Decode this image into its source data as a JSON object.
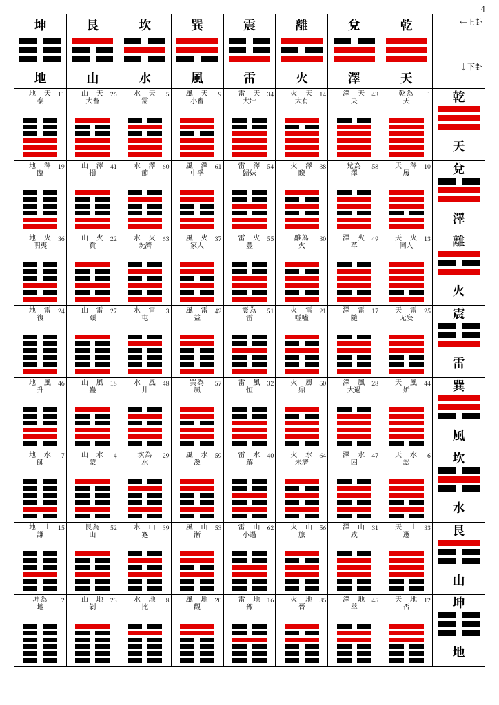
{
  "page_number": "4",
  "colors": {
    "solid": "#e20000",
    "broken": "#000000"
  },
  "legend": {
    "top": "←上卦",
    "bottom": "↓下卦"
  },
  "trigrams": [
    {
      "name": "坤",
      "elem": "地",
      "lines": [
        0,
        0,
        0
      ]
    },
    {
      "name": "艮",
      "elem": "山",
      "lines": [
        1,
        0,
        0
      ]
    },
    {
      "name": "坎",
      "elem": "水",
      "lines": [
        0,
        1,
        0
      ]
    },
    {
      "name": "巽",
      "elem": "風",
      "lines": [
        1,
        1,
        0
      ]
    },
    {
      "name": "震",
      "elem": "雷",
      "lines": [
        0,
        0,
        1
      ]
    },
    {
      "name": "離",
      "elem": "火",
      "lines": [
        1,
        0,
        1
      ]
    },
    {
      "name": "兌",
      "elem": "澤",
      "lines": [
        0,
        1,
        1
      ]
    },
    {
      "name": "乾",
      "elem": "天",
      "lines": [
        1,
        1,
        1
      ]
    }
  ],
  "grid": [
    [
      {
        "n": 11,
        "t1": "地　天",
        "t2": "泰"
      },
      {
        "n": 26,
        "t1": "山　天",
        "t2": "大畜"
      },
      {
        "n": 5,
        "t1": "水　天",
        "t2": "需"
      },
      {
        "n": 9,
        "t1": "風　天",
        "t2": "小畜"
      },
      {
        "n": 34,
        "t1": "雷　天",
        "t2": "大壯"
      },
      {
        "n": 14,
        "t1": "火　天",
        "t2": "大有"
      },
      {
        "n": 43,
        "t1": "澤　天",
        "t2": "夬"
      },
      {
        "n": 1,
        "t1": "乾為",
        "t2": "天"
      }
    ],
    [
      {
        "n": 19,
        "t1": "地　澤",
        "t2": "臨"
      },
      {
        "n": 41,
        "t1": "山　澤",
        "t2": "損"
      },
      {
        "n": 60,
        "t1": "水　澤",
        "t2": "節"
      },
      {
        "n": 61,
        "t1": "風　澤",
        "t2": "中孚"
      },
      {
        "n": 54,
        "t1": "雷　澤",
        "t2": "歸妹"
      },
      {
        "n": 38,
        "t1": "火　澤",
        "t2": "睽"
      },
      {
        "n": 58,
        "t1": "兌為",
        "t2": "澤"
      },
      {
        "n": 10,
        "t1": "天　澤",
        "t2": "履"
      }
    ],
    [
      {
        "n": 36,
        "t1": "地　火",
        "t2": "明夷"
      },
      {
        "n": 22,
        "t1": "山　火",
        "t2": "賁"
      },
      {
        "n": 63,
        "t1": "水　火",
        "t2": "既濟"
      },
      {
        "n": 37,
        "t1": "風　火",
        "t2": "家人"
      },
      {
        "n": 55,
        "t1": "雷　火",
        "t2": "豐"
      },
      {
        "n": 30,
        "t1": "離為",
        "t2": "火"
      },
      {
        "n": 49,
        "t1": "澤　火",
        "t2": "革"
      },
      {
        "n": 13,
        "t1": "天　火",
        "t2": "同人"
      }
    ],
    [
      {
        "n": 24,
        "t1": "地　雷",
        "t2": "復"
      },
      {
        "n": 27,
        "t1": "山　雷",
        "t2": "頤"
      },
      {
        "n": 3,
        "t1": "水　雷",
        "t2": "屯"
      },
      {
        "n": 42,
        "t1": "風　雷",
        "t2": "益"
      },
      {
        "n": 51,
        "t1": "震為",
        "t2": "雷"
      },
      {
        "n": 21,
        "t1": "火　雷",
        "t2": "噬嗑"
      },
      {
        "n": 17,
        "t1": "澤　雷",
        "t2": "隨"
      },
      {
        "n": 25,
        "t1": "天　雷",
        "t2": "无妄"
      }
    ],
    [
      {
        "n": 46,
        "t1": "地　風",
        "t2": "升"
      },
      {
        "n": 18,
        "t1": "山　風",
        "t2": "蠱"
      },
      {
        "n": 48,
        "t1": "水　風",
        "t2": "井"
      },
      {
        "n": 57,
        "t1": "巽為",
        "t2": "風"
      },
      {
        "n": 32,
        "t1": "雷　風",
        "t2": "恒"
      },
      {
        "n": 50,
        "t1": "火　風",
        "t2": "鼎"
      },
      {
        "n": 28,
        "t1": "澤　風",
        "t2": "大過"
      },
      {
        "n": 44,
        "t1": "天　風",
        "t2": "姤"
      }
    ],
    [
      {
        "n": 7,
        "t1": "地　水",
        "t2": "師"
      },
      {
        "n": 4,
        "t1": "山　水",
        "t2": "蒙"
      },
      {
        "n": 29,
        "t1": "坎為",
        "t2": "水"
      },
      {
        "n": 59,
        "t1": "風　水",
        "t2": "渙"
      },
      {
        "n": 40,
        "t1": "雷　水",
        "t2": "解"
      },
      {
        "n": 64,
        "t1": "火　水",
        "t2": "未濟"
      },
      {
        "n": 47,
        "t1": "澤　水",
        "t2": "困"
      },
      {
        "n": 6,
        "t1": "天　水",
        "t2": "訟"
      }
    ],
    [
      {
        "n": 15,
        "t1": "地　山",
        "t2": "謙"
      },
      {
        "n": 52,
        "t1": "艮為",
        "t2": "山"
      },
      {
        "n": 39,
        "t1": "水　山",
        "t2": "蹇"
      },
      {
        "n": 53,
        "t1": "風　山",
        "t2": "漸"
      },
      {
        "n": 62,
        "t1": "雷　山",
        "t2": "小過"
      },
      {
        "n": 56,
        "t1": "火　山",
        "t2": "旅"
      },
      {
        "n": 31,
        "t1": "澤　山",
        "t2": "咸"
      },
      {
        "n": 33,
        "t1": "天　山",
        "t2": "遯"
      }
    ],
    [
      {
        "n": 2,
        "t1": "坤為",
        "t2": "地"
      },
      {
        "n": 23,
        "t1": "山　地",
        "t2": "剝"
      },
      {
        "n": 8,
        "t1": "水　地",
        "t2": "比"
      },
      {
        "n": 20,
        "t1": "風　地",
        "t2": "觀"
      },
      {
        "n": 16,
        "t1": "雷　地",
        "t2": "豫"
      },
      {
        "n": 35,
        "t1": "火　地",
        "t2": "晉"
      },
      {
        "n": 45,
        "t1": "澤　地",
        "t2": "萃"
      },
      {
        "n": 12,
        "t1": "天　地",
        "t2": "否"
      }
    ]
  ]
}
